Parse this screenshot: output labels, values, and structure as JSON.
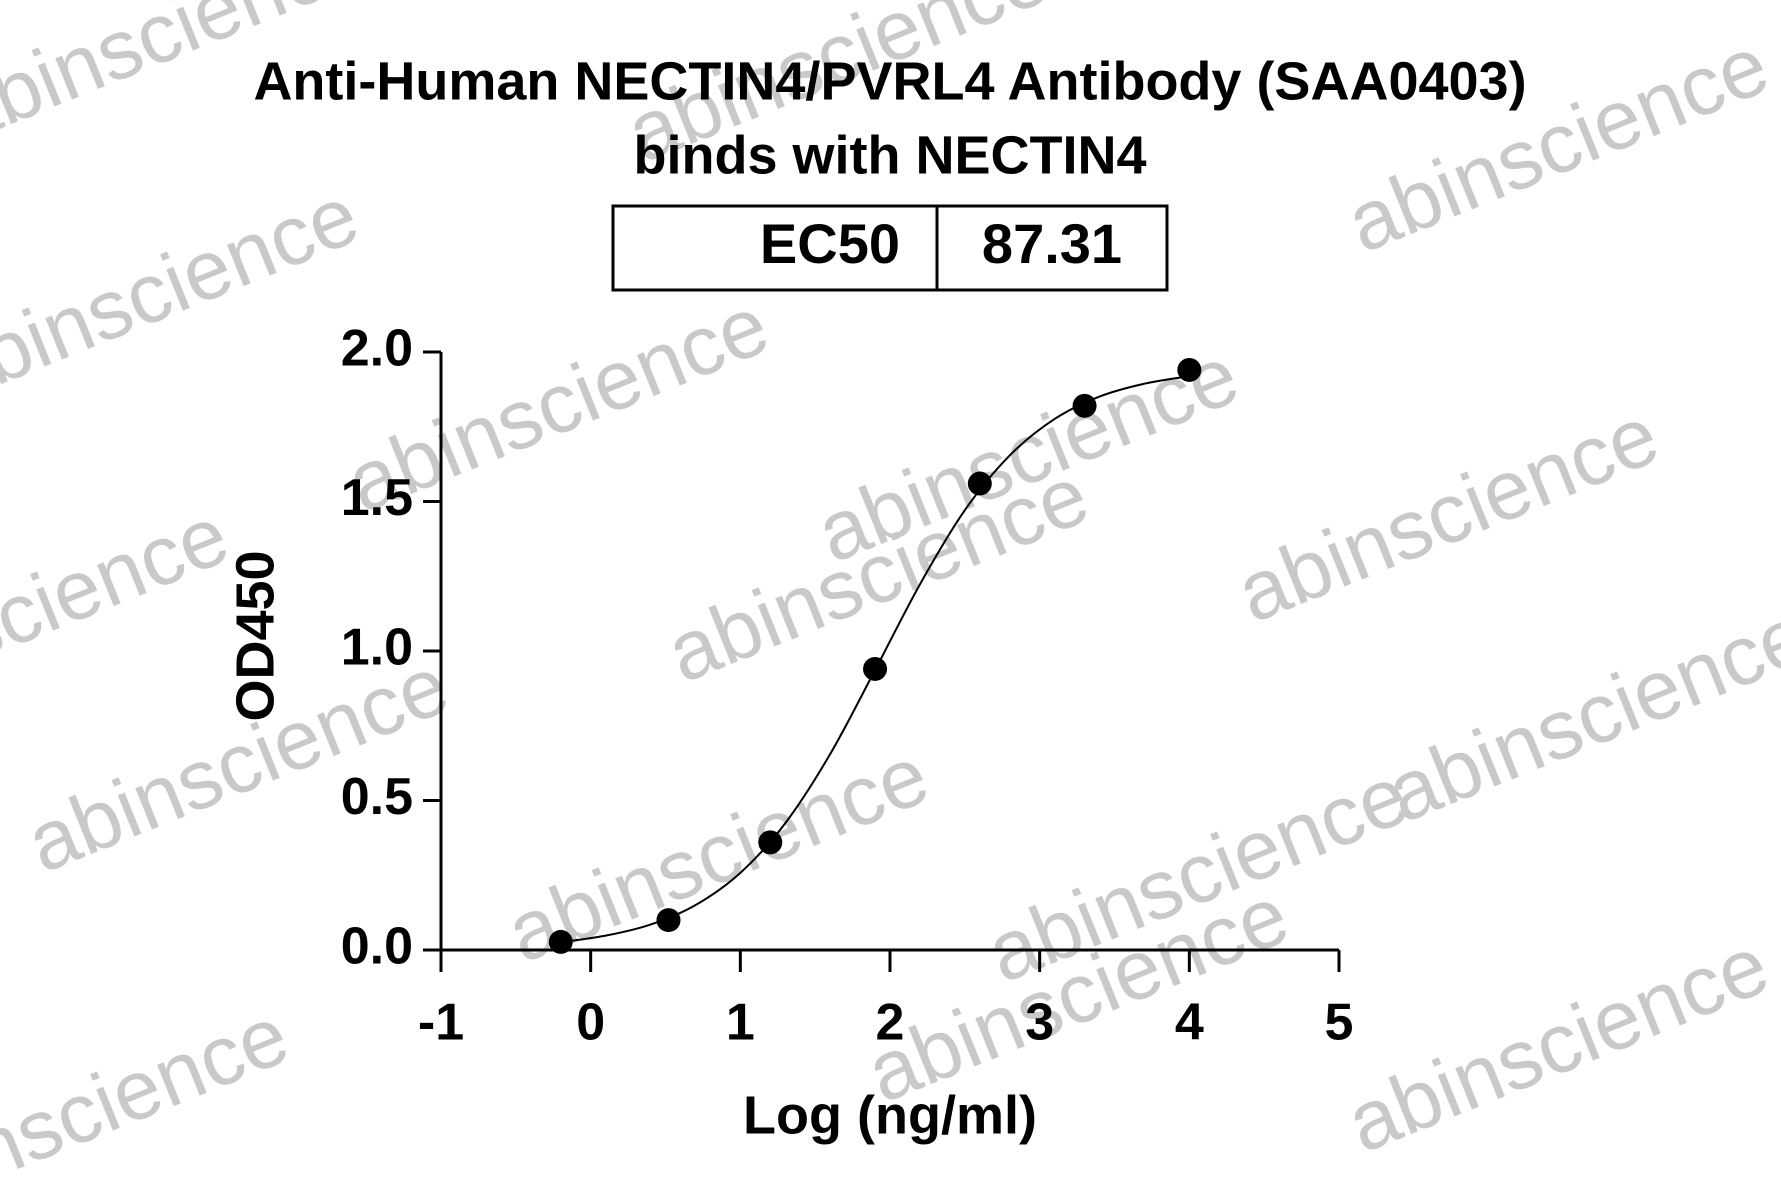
{
  "chart_data": {
    "type": "scatter",
    "title": "Anti-Human NECTIN4/PVRL4 Antibody (SAA0403)",
    "subtitle": "binds with NECTIN4",
    "ec50_table": {
      "label": "EC50",
      "value": 87.31
    },
    "x_label": "Log (ng/ml)",
    "y_label": "OD450",
    "watermark": "abinscience",
    "x": [
      -0.2,
      0.52,
      1.2,
      1.9,
      2.6,
      3.3,
      4.0
    ],
    "values": [
      0.027,
      0.1,
      0.36,
      0.94,
      1.56,
      1.82,
      1.94
    ],
    "color": "#000000",
    "curve": {
      "x": [
        -0.2,
        0.1,
        0.4,
        0.7,
        1.0,
        1.3,
        1.6,
        1.9,
        2.2,
        2.5,
        2.8,
        3.1,
        3.4,
        3.7,
        4.0
      ],
      "values": [
        0.026,
        0.048,
        0.085,
        0.15,
        0.258,
        0.424,
        0.655,
        0.936,
        1.223,
        1.471,
        1.654,
        1.776,
        1.851,
        1.894,
        1.919
      ]
    },
    "xlim": [
      -1,
      5
    ],
    "xticks": [
      -1,
      0,
      1,
      2,
      3,
      4,
      5
    ],
    "ylim": [
      0,
      2
    ],
    "yticks": [
      {
        "value": 0,
        "label": "0.0"
      },
      0.5,
      {
        "value": 1,
        "label": "1.0"
      },
      1.5,
      {
        "value": 2,
        "label": "2.0"
      }
    ]
  }
}
